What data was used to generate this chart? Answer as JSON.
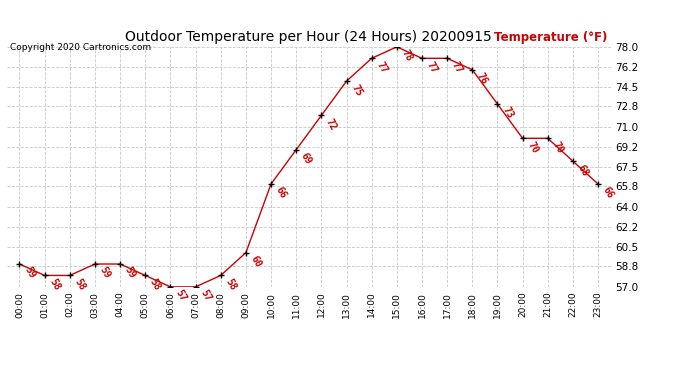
{
  "title": "Outdoor Temperature per Hour (24 Hours) 20200915",
  "copyright": "Copyright 2020 Cartronics.com",
  "ylabel": "Temperature (°F)",
  "hours": [
    0,
    1,
    2,
    3,
    4,
    5,
    6,
    7,
    8,
    9,
    10,
    11,
    12,
    13,
    14,
    15,
    16,
    17,
    18,
    19,
    20,
    21,
    22,
    23
  ],
  "temps": [
    59,
    58,
    58,
    59,
    59,
    58,
    57,
    57,
    58,
    60,
    66,
    69,
    72,
    75,
    77,
    78,
    77,
    77,
    76,
    73,
    70,
    70,
    68,
    66
  ],
  "xlabels": [
    "00:00",
    "01:00",
    "02:00",
    "03:00",
    "04:00",
    "05:00",
    "06:00",
    "07:00",
    "08:00",
    "09:00",
    "10:00",
    "11:00",
    "12:00",
    "13:00",
    "14:00",
    "15:00",
    "16:00",
    "17:00",
    "18:00",
    "19:00",
    "20:00",
    "21:00",
    "22:00",
    "23:00"
  ],
  "ylim": [
    57.0,
    78.0
  ],
  "ytick_vals": [
    57.0,
    58.8,
    60.5,
    62.2,
    64.0,
    65.8,
    67.5,
    69.2,
    71.0,
    72.8,
    74.5,
    76.2,
    78.0
  ],
  "ytick_labels": [
    "57.0",
    "58.8",
    "60.5",
    "62.2",
    "64.0",
    "65.8",
    "67.5",
    "69.2",
    "71.0",
    "72.8",
    "74.5",
    "76.2",
    "78.0"
  ],
  "line_color": "#cc0000",
  "marker_color": "#000000",
  "label_color": "#cc0000",
  "title_color": "#000000",
  "copyright_color": "#000000",
  "ylabel_color": "#cc0000",
  "background_color": "#ffffff",
  "grid_color": "#c8c8c8"
}
